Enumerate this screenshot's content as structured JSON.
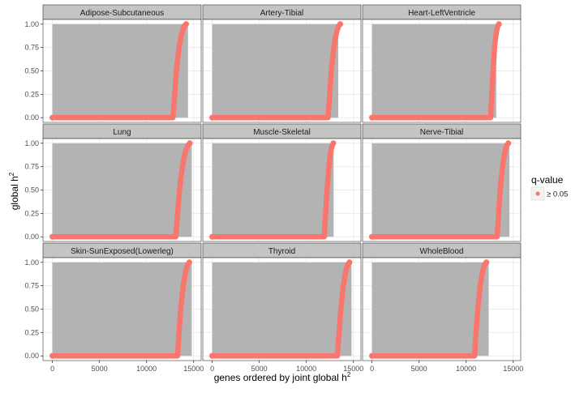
{
  "chart_data": {
    "type": "scatter",
    "facets": [
      {
        "label": "Adipose-Subcutaneous",
        "gray_points": [
          [
            0,
            0
          ],
          [
            0,
            1
          ],
          [
            14400,
            1
          ],
          [
            14400,
            0
          ]
        ],
        "curve": [
          [
            0,
            0
          ],
          [
            12800,
            0
          ],
          [
            12960,
            0.2
          ],
          [
            13060,
            0.35
          ],
          [
            13160,
            0.5
          ],
          [
            13300,
            0.62
          ],
          [
            13450,
            0.75
          ],
          [
            13620,
            0.85
          ],
          [
            13820,
            0.93
          ],
          [
            14000,
            0.98
          ],
          [
            14200,
            1.0
          ]
        ]
      },
      {
        "label": "Artery-Tibial",
        "gray_points": [
          [
            0,
            0
          ],
          [
            0,
            1
          ],
          [
            13400,
            1
          ],
          [
            13400,
            0
          ]
        ],
        "curve": [
          [
            0,
            0
          ],
          [
            12300,
            0
          ],
          [
            12450,
            0.2
          ],
          [
            12550,
            0.35
          ],
          [
            12650,
            0.5
          ],
          [
            12780,
            0.62
          ],
          [
            12920,
            0.75
          ],
          [
            13080,
            0.85
          ],
          [
            13260,
            0.93
          ],
          [
            13420,
            0.98
          ],
          [
            13600,
            1.0
          ]
        ]
      },
      {
        "label": "Heart-LeftVentricle",
        "gray_points": [
          [
            0,
            0
          ],
          [
            0,
            1
          ],
          [
            13200,
            1
          ],
          [
            13200,
            0
          ]
        ],
        "curve": [
          [
            0,
            0
          ],
          [
            12600,
            0
          ],
          [
            12700,
            0.2
          ],
          [
            12780,
            0.35
          ],
          [
            12860,
            0.5
          ],
          [
            12940,
            0.62
          ],
          [
            13020,
            0.75
          ],
          [
            13120,
            0.85
          ],
          [
            13240,
            0.93
          ],
          [
            13360,
            0.98
          ],
          [
            13480,
            1.0
          ]
        ]
      },
      {
        "label": "Lung",
        "gray_points": [
          [
            0,
            0
          ],
          [
            0,
            1
          ],
          [
            14800,
            1
          ],
          [
            14800,
            0
          ]
        ],
        "curve": [
          [
            0,
            0
          ],
          [
            13100,
            0
          ],
          [
            13260,
            0.2
          ],
          [
            13380,
            0.35
          ],
          [
            13500,
            0.5
          ],
          [
            13650,
            0.62
          ],
          [
            13820,
            0.75
          ],
          [
            14000,
            0.85
          ],
          [
            14200,
            0.93
          ],
          [
            14400,
            0.98
          ],
          [
            14600,
            1.0
          ]
        ]
      },
      {
        "label": "Muscle-Skeletal",
        "gray_points": [
          [
            0,
            0
          ],
          [
            0,
            1
          ],
          [
            12900,
            1
          ],
          [
            12900,
            0
          ]
        ],
        "curve": [
          [
            0,
            0
          ],
          [
            11900,
            0
          ],
          [
            12020,
            0.2
          ],
          [
            12110,
            0.35
          ],
          [
            12200,
            0.5
          ],
          [
            12300,
            0.62
          ],
          [
            12400,
            0.75
          ],
          [
            12510,
            0.85
          ],
          [
            12630,
            0.93
          ],
          [
            12760,
            0.98
          ],
          [
            12860,
            1.0
          ]
        ]
      },
      {
        "label": "Nerve-Tibial",
        "gray_points": [
          [
            0,
            0
          ],
          [
            0,
            1
          ],
          [
            14600,
            1
          ],
          [
            14600,
            0
          ]
        ],
        "curve": [
          [
            0,
            0
          ],
          [
            13300,
            0
          ],
          [
            13420,
            0.2
          ],
          [
            13520,
            0.35
          ],
          [
            13620,
            0.5
          ],
          [
            13740,
            0.62
          ],
          [
            13870,
            0.75
          ],
          [
            14020,
            0.85
          ],
          [
            14170,
            0.93
          ],
          [
            14320,
            0.98
          ],
          [
            14480,
            1.0
          ]
        ]
      },
      {
        "label": "Skin-SunExposed(Lowerleg)",
        "gray_points": [
          [
            0,
            0
          ],
          [
            0,
            1
          ],
          [
            14800,
            1
          ],
          [
            14800,
            0
          ]
        ],
        "curve": [
          [
            0,
            0
          ],
          [
            13300,
            0
          ],
          [
            13420,
            0.2
          ],
          [
            13520,
            0.35
          ],
          [
            13630,
            0.5
          ],
          [
            13760,
            0.62
          ],
          [
            13900,
            0.75
          ],
          [
            14060,
            0.85
          ],
          [
            14220,
            0.93
          ],
          [
            14380,
            0.98
          ],
          [
            14540,
            1.0
          ]
        ]
      },
      {
        "label": "Thyroid",
        "gray_points": [
          [
            0,
            0
          ],
          [
            0,
            1
          ],
          [
            14800,
            1
          ],
          [
            14800,
            0
          ]
        ],
        "curve": [
          [
            0,
            0
          ],
          [
            13300,
            0
          ],
          [
            13440,
            0.2
          ],
          [
            13550,
            0.35
          ],
          [
            13660,
            0.5
          ],
          [
            13790,
            0.62
          ],
          [
            13930,
            0.75
          ],
          [
            14090,
            0.85
          ],
          [
            14250,
            0.93
          ],
          [
            14410,
            0.98
          ],
          [
            14580,
            1.0
          ]
        ]
      },
      {
        "label": "WholeBlood",
        "gray_points": [
          [
            0,
            0
          ],
          [
            0,
            1
          ],
          [
            12400,
            1
          ],
          [
            12400,
            0
          ]
        ],
        "curve": [
          [
            0,
            0
          ],
          [
            10900,
            0
          ],
          [
            11020,
            0.2
          ],
          [
            11120,
            0.35
          ],
          [
            11230,
            0.5
          ],
          [
            11360,
            0.62
          ],
          [
            11500,
            0.75
          ],
          [
            11650,
            0.85
          ],
          [
            11820,
            0.93
          ],
          [
            11980,
            0.98
          ],
          [
            12150,
            1.0
          ]
        ]
      }
    ],
    "xlabel": "genes ordered by joint global h",
    "xlabel_sup": "2",
    "ylabel": "global h",
    "ylabel_sup": "2",
    "xlim": [
      -1000,
      15800
    ],
    "ylim": [
      -0.05,
      1.05
    ],
    "x_ticks": [
      0,
      5000,
      10000,
      15000
    ],
    "x_tick_labels": [
      "0",
      "5000",
      "10000",
      "15000"
    ],
    "y_ticks": [
      0,
      0.25,
      0.5,
      0.75,
      1.0
    ],
    "y_tick_labels": [
      "0.00",
      "0.25",
      "0.50",
      "0.75",
      "1.00"
    ],
    "grid": true,
    "legend": {
      "title": "q-value",
      "placement": "right",
      "items": [
        {
          "label": "≥ 0.05",
          "color": "#F8766D"
        }
      ]
    },
    "colors": {
      "point": "#F8766D",
      "gray": "#b3b3b3",
      "strip": "#c4c4c4",
      "grid": "#ebebeb",
      "border": "#333333"
    }
  }
}
